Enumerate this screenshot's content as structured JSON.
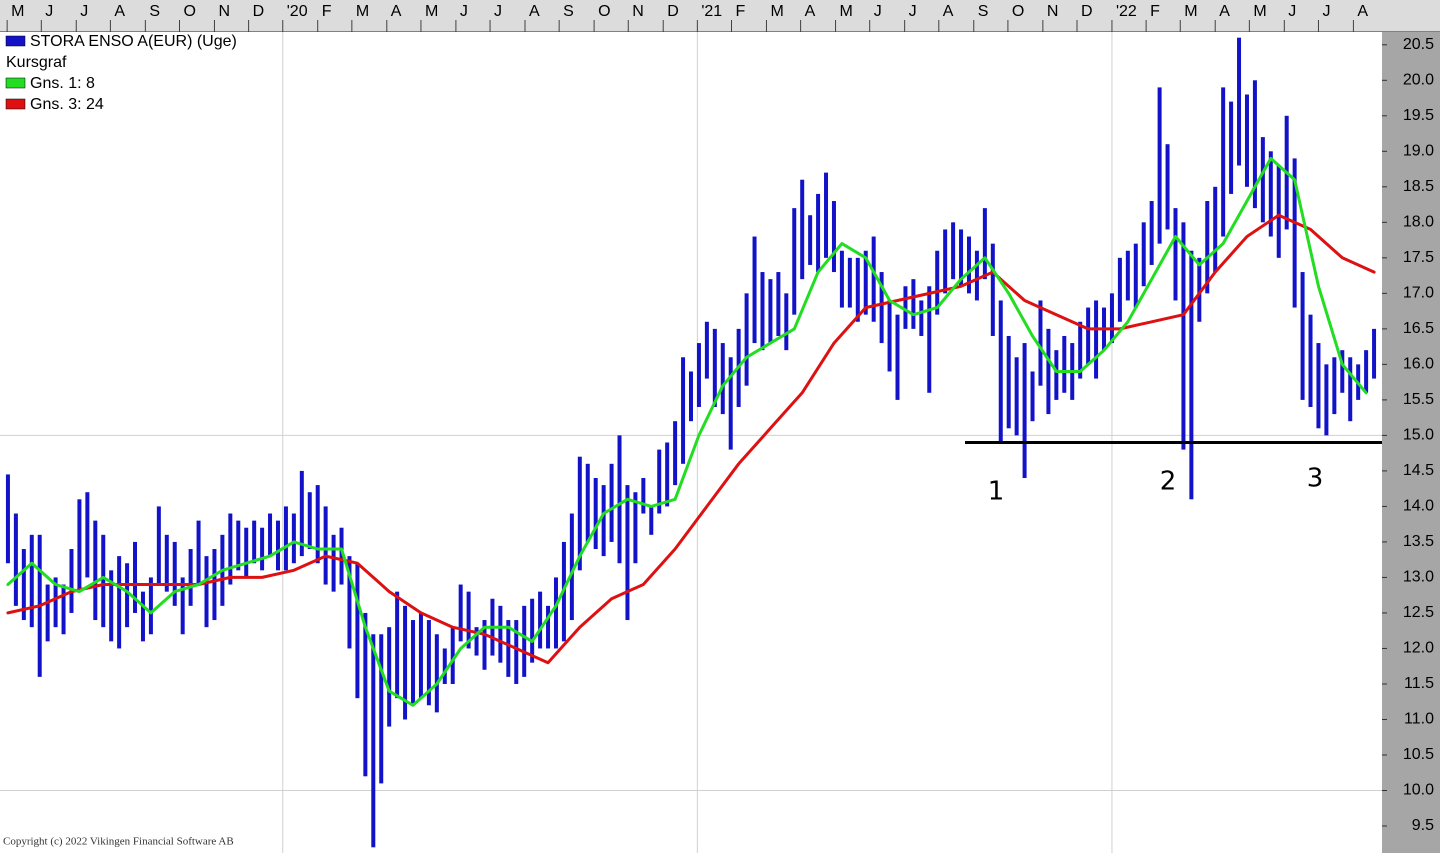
{
  "chart_data": {
    "type": "price",
    "legend_subtitle": "Kursgraf",
    "copyright": "Copyright (c) 2022 Vikingen Financial Software AB",
    "xlim": [
      0,
      174
    ],
    "ylim": [
      9.12,
      20.68
    ],
    "xticks": [
      {
        "value": 0.9,
        "label": "M"
      },
      {
        "value": 5.2,
        "label": "J"
      },
      {
        "value": 9.6,
        "label": "J"
      },
      {
        "value": 13.9,
        "label": "A"
      },
      {
        "value": 18.3,
        "label": "S"
      },
      {
        "value": 22.6,
        "label": "O"
      },
      {
        "value": 27.0,
        "label": "N"
      },
      {
        "value": 31.3,
        "label": "D"
      },
      {
        "value": 35.6,
        "label": "'20"
      },
      {
        "value": 40.0,
        "label": "F"
      },
      {
        "value": 44.3,
        "label": "M"
      },
      {
        "value": 48.7,
        "label": "A"
      },
      {
        "value": 53.0,
        "label": "M"
      },
      {
        "value": 57.4,
        "label": "J"
      },
      {
        "value": 61.7,
        "label": "J"
      },
      {
        "value": 66.1,
        "label": "A"
      },
      {
        "value": 70.4,
        "label": "S"
      },
      {
        "value": 74.8,
        "label": "O"
      },
      {
        "value": 79.1,
        "label": "N"
      },
      {
        "value": 83.5,
        "label": "D"
      },
      {
        "value": 87.8,
        "label": "'21"
      },
      {
        "value": 92.1,
        "label": "F"
      },
      {
        "value": 96.5,
        "label": "M"
      },
      {
        "value": 100.8,
        "label": "A"
      },
      {
        "value": 105.2,
        "label": "M"
      },
      {
        "value": 109.5,
        "label": "J"
      },
      {
        "value": 113.9,
        "label": "J"
      },
      {
        "value": 118.2,
        "label": "A"
      },
      {
        "value": 122.6,
        "label": "S"
      },
      {
        "value": 126.9,
        "label": "O"
      },
      {
        "value": 131.3,
        "label": "N"
      },
      {
        "value": 135.6,
        "label": "D"
      },
      {
        "value": 140.0,
        "label": "'22"
      },
      {
        "value": 144.3,
        "label": "F"
      },
      {
        "value": 148.6,
        "label": "M"
      },
      {
        "value": 153.0,
        "label": "A"
      },
      {
        "value": 157.3,
        "label": "M"
      },
      {
        "value": 161.7,
        "label": "J"
      },
      {
        "value": 166.0,
        "label": "J"
      },
      {
        "value": 170.4,
        "label": "A"
      }
    ],
    "xgrid": [
      35.6,
      87.8,
      140.0
    ],
    "yticks": [
      9.5,
      {
        "value": 10,
        "label": "10.0"
      },
      10.5,
      {
        "value": 11,
        "label": "11.0"
      },
      11.5,
      {
        "value": 12,
        "label": "12.0"
      },
      12.5,
      {
        "value": 13,
        "label": "13.0"
      },
      13.5,
      {
        "value": 14,
        "label": "14.0"
      },
      14.5,
      {
        "value": 15,
        "label": "15.0"
      },
      15.5,
      {
        "value": 16,
        "label": "16.0"
      },
      16.5,
      {
        "value": 17,
        "label": "17.0"
      },
      17.5,
      {
        "value": 18,
        "label": "18.0"
      },
      18.5,
      {
        "value": 19,
        "label": "19.0"
      },
      19.5,
      {
        "value": 20,
        "label": "20.0"
      },
      20.5
    ],
    "ygrid": [
      10,
      15
    ],
    "series": [
      {
        "name": "STORA ENSO A(EUR) (Uge)",
        "type": "hilo",
        "color": "#1212c8",
        "x": [
          1,
          2,
          3,
          4,
          5,
          6,
          7,
          8,
          9,
          10,
          11,
          12,
          13,
          14,
          15,
          16,
          17,
          18,
          19,
          20,
          21,
          22,
          23,
          24,
          25,
          26,
          27,
          28,
          29,
          30,
          31,
          32,
          33,
          34,
          35,
          36,
          37,
          38,
          39,
          40,
          41,
          42,
          43,
          44,
          45,
          46,
          47,
          48,
          49,
          50,
          51,
          52,
          53,
          54,
          55,
          56,
          57,
          58,
          59,
          60,
          61,
          62,
          63,
          64,
          65,
          66,
          67,
          68,
          69,
          70,
          71,
          72,
          73,
          74,
          75,
          76,
          77,
          78,
          79,
          80,
          81,
          82,
          83,
          84,
          85,
          86,
          87,
          88,
          89,
          90,
          91,
          92,
          93,
          94,
          95,
          96,
          97,
          98,
          99,
          100,
          101,
          102,
          103,
          104,
          105,
          106,
          107,
          108,
          109,
          110,
          111,
          112,
          113,
          114,
          115,
          116,
          117,
          118,
          119,
          120,
          121,
          122,
          123,
          124,
          125,
          126,
          127,
          128,
          129,
          130,
          131,
          132,
          133,
          134,
          135,
          136,
          137,
          138,
          139,
          140,
          141,
          142,
          143,
          144,
          145,
          146,
          147,
          148,
          149,
          150,
          151,
          152,
          153,
          154,
          155,
          156,
          157,
          158,
          159,
          160,
          161,
          162,
          163,
          164,
          165,
          166,
          167,
          168,
          169,
          170,
          171,
          172,
          173
        ],
        "high": [
          14.45,
          13.9,
          13.4,
          13.6,
          13.6,
          12.9,
          13.0,
          12.9,
          13.4,
          14.1,
          14.2,
          13.8,
          13.6,
          13.1,
          13.3,
          13.2,
          13.5,
          12.8,
          13.0,
          14.0,
          13.6,
          13.5,
          13.0,
          13.4,
          13.8,
          13.3,
          13.4,
          13.6,
          13.9,
          13.8,
          13.7,
          13.8,
          13.7,
          13.9,
          13.8,
          14.0,
          13.9,
          14.5,
          14.2,
          14.3,
          14.0,
          13.6,
          13.7,
          13.3,
          13.2,
          12.5,
          12.2,
          12.2,
          12.3,
          12.8,
          12.6,
          12.4,
          12.5,
          12.4,
          12.2,
          12.0,
          12.3,
          12.9,
          12.8,
          12.3,
          12.4,
          12.7,
          12.6,
          12.4,
          12.4,
          12.6,
          12.7,
          12.8,
          12.6,
          13.0,
          13.5,
          13.9,
          14.7,
          14.6,
          14.4,
          14.3,
          14.6,
          15.0,
          14.3,
          14.2,
          14.4,
          14.0,
          14.8,
          14.9,
          15.2,
          16.1,
          15.9,
          16.3,
          16.6,
          16.5,
          16.3,
          16.1,
          16.5,
          17.0,
          17.8,
          17.3,
          17.2,
          17.3,
          17.0,
          18.2,
          18.6,
          18.1,
          18.4,
          18.7,
          18.3,
          17.6,
          17.5,
          17.5,
          17.6,
          17.8,
          17.3,
          16.9,
          16.7,
          17.1,
          17.2,
          16.9,
          17.1,
          17.6,
          17.9,
          18.0,
          17.9,
          17.8,
          17.6,
          18.2,
          17.7,
          16.9,
          16.4,
          16.1,
          16.3,
          15.9,
          16.9,
          16.5,
          16.2,
          16.4,
          16.3,
          16.6,
          16.8,
          16.9,
          16.8,
          17.0,
          17.5,
          17.6,
          17.7,
          18.0,
          18.3,
          19.9,
          19.1,
          18.2,
          18.0,
          17.6,
          17.5,
          18.3,
          18.5,
          19.9,
          19.7,
          20.6,
          19.8,
          20.0,
          19.2,
          19.0,
          18.8,
          19.5,
          18.9,
          17.3,
          16.7,
          16.3,
          16.0,
          16.1,
          16.2,
          16.1,
          16.0,
          16.2,
          16.5
        ],
        "low": [
          13.2,
          12.6,
          12.4,
          12.3,
          11.6,
          12.1,
          12.3,
          12.2,
          12.5,
          12.8,
          13.0,
          12.4,
          12.3,
          12.1,
          12.0,
          12.3,
          12.5,
          12.1,
          12.2,
          12.9,
          12.8,
          12.6,
          12.2,
          12.6,
          12.9,
          12.3,
          12.4,
          12.6,
          12.9,
          13.1,
          13.0,
          13.2,
          13.1,
          13.3,
          13.1,
          13.1,
          13.2,
          13.3,
          13.4,
          13.2,
          12.9,
          12.8,
          12.9,
          12.0,
          11.3,
          10.2,
          9.2,
          10.1,
          10.9,
          11.3,
          11.0,
          11.2,
          11.3,
          11.2,
          11.1,
          11.5,
          11.5,
          12.1,
          12.0,
          11.9,
          11.7,
          11.9,
          11.8,
          11.6,
          11.5,
          11.6,
          11.8,
          12.0,
          12.0,
          12.0,
          12.1,
          12.4,
          13.1,
          13.5,
          13.4,
          13.3,
          13.5,
          13.2,
          12.4,
          13.2,
          13.9,
          13.6,
          13.9,
          14.0,
          14.3,
          14.6,
          15.2,
          15.4,
          15.8,
          15.4,
          15.3,
          14.8,
          15.4,
          15.7,
          16.3,
          16.2,
          16.3,
          16.4,
          16.2,
          16.7,
          17.2,
          17.4,
          17.3,
          17.5,
          17.3,
          16.8,
          16.8,
          16.6,
          16.7,
          16.6,
          16.3,
          15.9,
          15.5,
          16.5,
          16.5,
          16.4,
          15.6,
          16.7,
          17.0,
          17.2,
          17.1,
          17.0,
          16.9,
          17.2,
          16.4,
          14.9,
          15.1,
          15.0,
          14.4,
          15.2,
          15.7,
          15.3,
          15.5,
          15.6,
          15.5,
          15.8,
          16.0,
          15.8,
          16.2,
          16.3,
          16.6,
          16.9,
          16.8,
          17.1,
          17.4,
          17.7,
          17.9,
          16.9,
          14.8,
          14.1,
          16.6,
          17.0,
          17.3,
          17.8,
          18.4,
          18.8,
          18.5,
          18.2,
          18.0,
          17.8,
          17.5,
          17.9,
          16.8,
          15.5,
          15.4,
          15.1,
          15.0,
          15.3,
          15.6,
          15.2,
          15.5,
          15.6,
          15.8
        ]
      },
      {
        "name": "Gns. 1: 8",
        "type": "line",
        "color": "#22dd22",
        "x": [
          1,
          4,
          7,
          10,
          13,
          16,
          19,
          22,
          25,
          28,
          31,
          34,
          37,
          40,
          43,
          46,
          49,
          52,
          55,
          58,
          61,
          64,
          67,
          70,
          73,
          76,
          79,
          82,
          85,
          88,
          91,
          94,
          97,
          100,
          103,
          106,
          109,
          112,
          115,
          118,
          121,
          124,
          127,
          130,
          133,
          136,
          139,
          142,
          145,
          148,
          151,
          154,
          157,
          160,
          163,
          166,
          169,
          172
        ],
        "values": [
          12.9,
          13.2,
          12.9,
          12.8,
          13.0,
          12.8,
          12.5,
          12.8,
          12.9,
          13.1,
          13.2,
          13.3,
          13.5,
          13.4,
          13.4,
          12.3,
          11.4,
          11.2,
          11.5,
          12.0,
          12.3,
          12.3,
          12.1,
          12.6,
          13.3,
          13.9,
          14.1,
          14.0,
          14.1,
          15.0,
          15.7,
          16.1,
          16.3,
          16.5,
          17.3,
          17.7,
          17.5,
          16.9,
          16.7,
          16.8,
          17.2,
          17.5,
          17.0,
          16.4,
          15.9,
          15.9,
          16.2,
          16.6,
          17.2,
          17.8,
          17.4,
          17.7,
          18.3,
          18.9,
          18.6,
          17.1,
          16.0,
          15.6
        ]
      },
      {
        "name": "Gns. 3: 24",
        "type": "line",
        "color": "#dd1111",
        "x": [
          1,
          5,
          9,
          13,
          17,
          21,
          25,
          29,
          33,
          37,
          41,
          45,
          49,
          53,
          57,
          61,
          65,
          69,
          73,
          77,
          81,
          85,
          89,
          93,
          97,
          101,
          105,
          109,
          113,
          117,
          121,
          125,
          129,
          133,
          137,
          141,
          145,
          149,
          153,
          157,
          161,
          165,
          169,
          173
        ],
        "values": [
          12.5,
          12.6,
          12.8,
          12.9,
          12.9,
          12.9,
          12.9,
          13.0,
          13.0,
          13.1,
          13.3,
          13.2,
          12.8,
          12.5,
          12.3,
          12.2,
          12.0,
          11.8,
          12.3,
          12.7,
          12.9,
          13.4,
          14.0,
          14.6,
          15.1,
          15.6,
          16.3,
          16.8,
          16.9,
          17.0,
          17.1,
          17.3,
          16.9,
          16.7,
          16.5,
          16.5,
          16.6,
          16.7,
          17.3,
          17.8,
          18.1,
          17.9,
          17.5,
          17.3
        ]
      }
    ],
    "support_line": {
      "value": 14.9,
      "x": [
        121.5,
        174
      ]
    },
    "annotations": [
      "1",
      "2",
      "3"
    ]
  }
}
